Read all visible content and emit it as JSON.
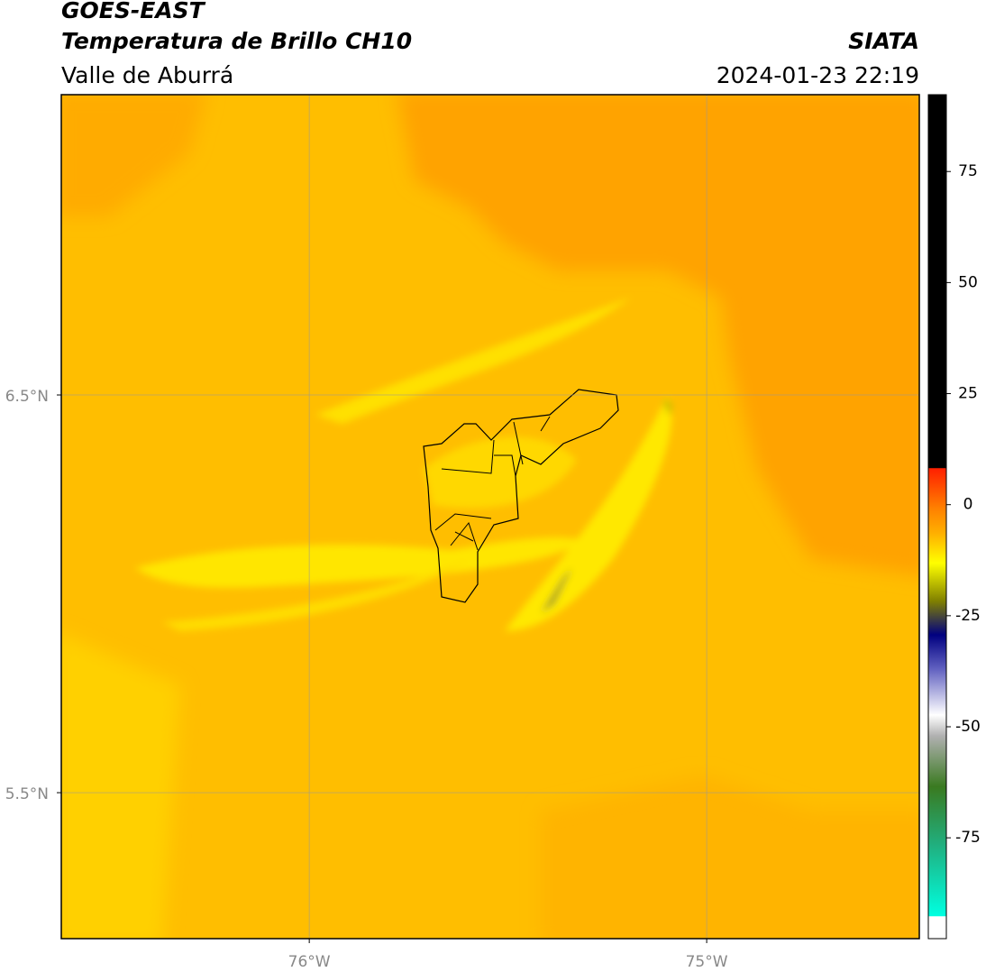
{
  "header": {
    "title": "GOES-EAST",
    "subtitle": "Temperatura de Brillo CH10",
    "region": "Valle de Aburrá",
    "source": "SIATA",
    "datetime": "2024-01-23 22:19"
  },
  "map": {
    "lon_range": [
      -76.624,
      -74.465
    ],
    "lat_range": [
      5.133,
      7.255
    ],
    "lon_ticks": [
      {
        "value": -76,
        "label": "76°W"
      },
      {
        "value": -75,
        "label": "75°W"
      }
    ],
    "lat_ticks": [
      {
        "value": 6.5,
        "label": "6.5°N"
      },
      {
        "value": 5.5,
        "label": "5.5°N"
      }
    ]
  },
  "colorbar": {
    "range": [
      -97.7,
      92.3
    ],
    "ticks": [
      75,
      50,
      25,
      0,
      -25,
      -50,
      -75
    ]
  }
}
